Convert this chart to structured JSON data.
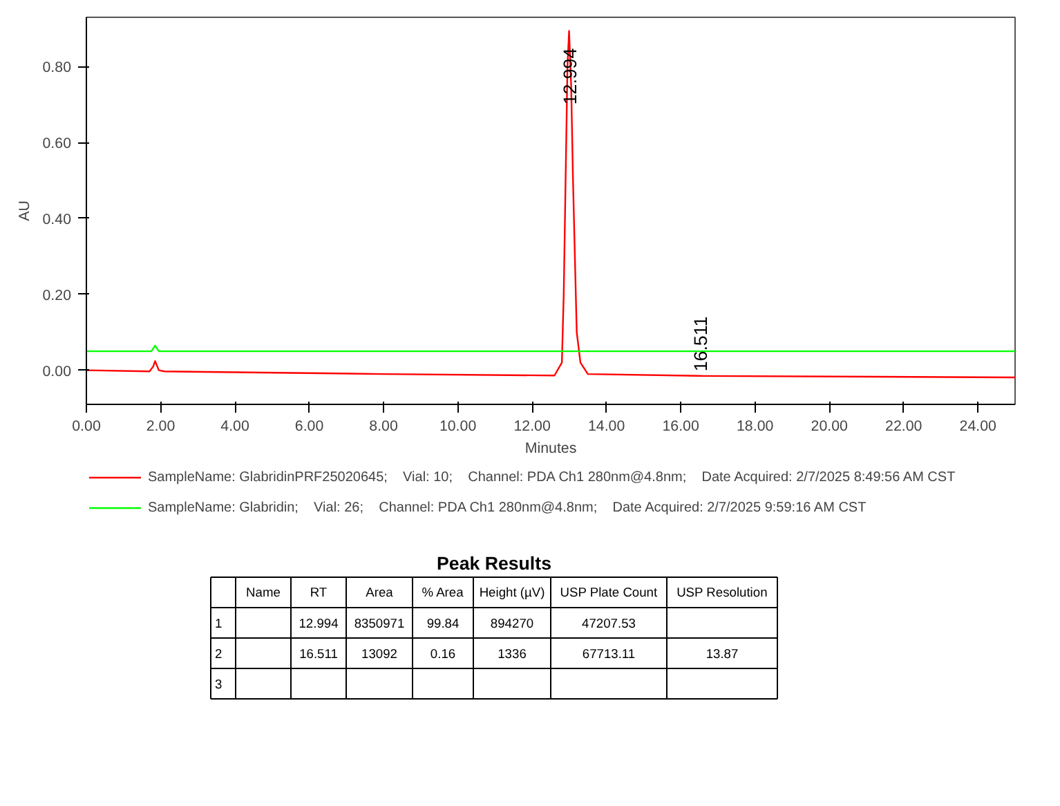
{
  "chart_data": [
    {
      "type": "line",
      "xlabel": "Minutes",
      "ylabel": "AU",
      "xlim": [
        0,
        25
      ],
      "ylim": [
        -0.09,
        0.93
      ],
      "xticks": [
        {
          "value": 0,
          "label": "0.00"
        },
        {
          "value": 2,
          "label": "2.00"
        },
        {
          "value": 4,
          "label": "4.00"
        },
        {
          "value": 6,
          "label": "6.00"
        },
        {
          "value": 8,
          "label": "8.00"
        },
        {
          "value": 10,
          "label": "10.00"
        },
        {
          "value": 12,
          "label": "12.00"
        },
        {
          "value": 14,
          "label": "14.00"
        },
        {
          "value": 16,
          "label": "16.00"
        },
        {
          "value": 18,
          "label": "18.00"
        },
        {
          "value": 20,
          "label": "20.00"
        },
        {
          "value": 22,
          "label": "22.00"
        },
        {
          "value": 24,
          "label": "24.00"
        }
      ],
      "yticks": [
        {
          "value": 0,
          "label": "0.00"
        },
        {
          "value": 0.2,
          "label": "0.20"
        },
        {
          "value": 0.4,
          "label": "0.40"
        },
        {
          "value": 0.6,
          "label": "0.60"
        },
        {
          "value": 0.8,
          "label": "0.80"
        }
      ],
      "grid": false,
      "legend": "bottom",
      "series": [
        {
          "name": "SampleName: GlabridinPRF25020645;    Vial: 10;    Channel: PDA Ch1 280nm@4.8nm;    Date Acquired: 2/7/2025 8:49:56 AM CST",
          "color": "#ff0000",
          "x": [
            0,
            1.7,
            1.8,
            1.85,
            1.95,
            2.1,
            8,
            12.6,
            12.8,
            12.85,
            12.9,
            12.95,
            12.994,
            13.05,
            13.1,
            13.15,
            13.2,
            13.3,
            13.5,
            16.5,
            25
          ],
          "values": [
            0,
            -0.003,
            0.01,
            0.024,
            0,
            -0.003,
            -0.01,
            -0.014,
            0.02,
            0.2,
            0.5,
            0.8,
            0.894,
            0.75,
            0.5,
            0.3,
            0.1,
            0.02,
            -0.01,
            -0.015,
            -0.019
          ]
        },
        {
          "name": "SampleName: Glabridin;    Vial: 26;    Channel: PDA Ch1 280nm@4.8nm;    Date Acquired: 2/7/2025 9:59:16 AM CST",
          "color": "#00ff00",
          "x": [
            0,
            1.75,
            1.85,
            1.95,
            25
          ],
          "values": [
            0.05,
            0.05,
            0.065,
            0.05,
            0.05
          ]
        }
      ],
      "annotations": [
        {
          "text": "12.994",
          "x": 12.994,
          "y": 0.7
        },
        {
          "text": "16.511",
          "x": 16.511,
          "y": -0.003
        }
      ]
    },
    {
      "type": "other",
      "title": "Peak Results",
      "categories": [
        "Name",
        "RT",
        "Area",
        "% Area",
        "Height (µV)",
        "USP Plate Count",
        "USP Resolution"
      ],
      "y_categories": [
        "1",
        "2",
        "3"
      ],
      "cell_labels": [
        [
          null,
          "12.994",
          "8350971",
          "99.84",
          "894270",
          "47207.53",
          null
        ],
        [
          null,
          "16.511",
          "13092",
          "0.16",
          "1336",
          "67713.11",
          "13.87"
        ],
        [
          null,
          null,
          null,
          null,
          null,
          null,
          null
        ]
      ]
    }
  ]
}
